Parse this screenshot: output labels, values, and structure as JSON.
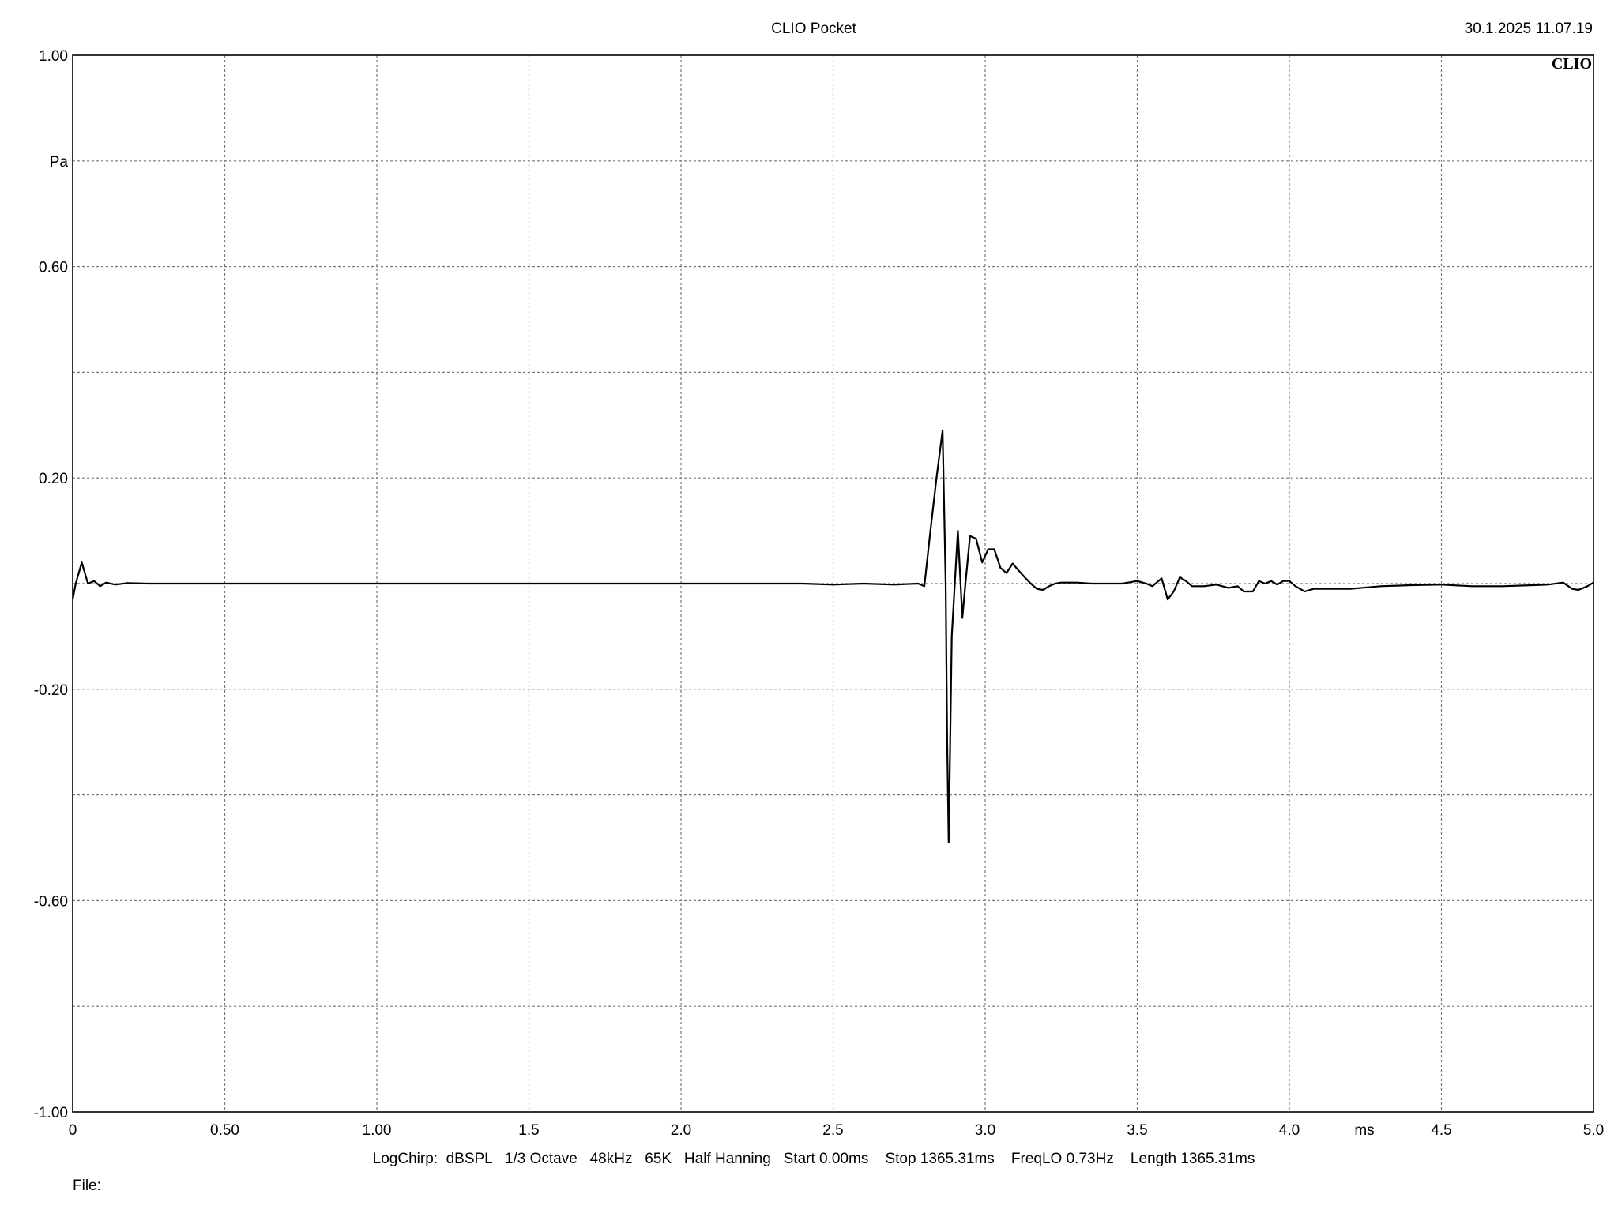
{
  "header": {
    "title": "CLIO Pocket",
    "timestamp": "30.1.2025 11.07.19",
    "logo": "CLIO"
  },
  "footer": {
    "settings": "LogChirp:  dBSPL   1/3 Octave   48kHz   65K   Half Hanning   Start 0.00ms    Stop 1365.31ms    FreqLO 0.73Hz    Length 1365.31ms",
    "file_label": "File:"
  },
  "chart_data": {
    "type": "line",
    "title": "CLIO Pocket",
    "xlabel": "ms",
    "ylabel": "Pa",
    "xlim": [
      0,
      5.0
    ],
    "ylim": [
      -1.0,
      1.0
    ],
    "grid": true,
    "x_ticks": [
      {
        "value": 0,
        "label": "0"
      },
      {
        "value": 0.5,
        "label": "0.50"
      },
      {
        "value": 1.0,
        "label": "1.00"
      },
      {
        "value": 1.5,
        "label": "1.5"
      },
      {
        "value": 2.0,
        "label": "2.0"
      },
      {
        "value": 2.5,
        "label": "2.5"
      },
      {
        "value": 3.0,
        "label": "3.0"
      },
      {
        "value": 3.5,
        "label": "3.5"
      },
      {
        "value": 4.0,
        "label": "4.0"
      },
      {
        "value": 4.5,
        "label": "4.5"
      },
      {
        "value": 5.0,
        "label": "5.0"
      }
    ],
    "y_ticks": [
      {
        "value": 1.0,
        "label": "1.00"
      },
      {
        "value": 0.6,
        "label": "0.60"
      },
      {
        "value": 0.2,
        "label": "0.20"
      },
      {
        "value": -0.2,
        "label": "-0.20"
      },
      {
        "value": -0.6,
        "label": "-0.60"
      },
      {
        "value": -1.0,
        "label": "-1.00"
      }
    ],
    "y_grid": [
      0.8,
      0.4,
      0.0,
      -0.4,
      -0.8
    ],
    "series": [
      {
        "color": "#000000",
        "x": [
          0,
          0.01,
          0.02,
          0.03,
          0.05,
          0.07,
          0.09,
          0.11,
          0.14,
          0.18,
          0.25,
          0.5,
          1.0,
          1.5,
          2.0,
          2.4,
          2.5,
          2.6,
          2.7,
          2.78,
          2.8,
          2.82,
          2.84,
          2.86,
          2.87,
          2.875,
          2.88,
          2.89,
          2.91,
          2.925,
          2.935,
          2.95,
          2.97,
          2.99,
          3.01,
          3.03,
          3.05,
          3.07,
          3.09,
          3.11,
          3.13,
          3.15,
          3.17,
          3.19,
          3.21,
          3.23,
          3.25,
          3.3,
          3.35,
          3.4,
          3.45,
          3.5,
          3.53,
          3.55,
          3.58,
          3.6,
          3.62,
          3.64,
          3.66,
          3.68,
          3.72,
          3.76,
          3.8,
          3.83,
          3.85,
          3.88,
          3.9,
          3.92,
          3.94,
          3.96,
          3.98,
          4.0,
          4.02,
          4.05,
          4.08,
          4.12,
          4.16,
          4.2,
          4.3,
          4.4,
          4.5,
          4.6,
          4.7,
          4.8,
          4.85,
          4.9,
          4.93,
          4.95,
          4.98,
          5.0
        ],
        "values": [
          -0.03,
          0.0,
          0.02,
          0.04,
          0.0,
          0.005,
          -0.005,
          0.002,
          -0.002,
          0.001,
          0.0,
          0.0,
          0.0,
          0.0,
          0.0,
          0.0,
          -0.002,
          0.0,
          -0.002,
          0.0,
          -0.005,
          0.1,
          0.2,
          0.29,
          0.0,
          -0.3,
          -0.49,
          -0.1,
          0.1,
          -0.065,
          0.0,
          0.09,
          0.085,
          0.04,
          0.065,
          0.065,
          0.03,
          0.02,
          0.038,
          0.025,
          0.012,
          0.0,
          -0.01,
          -0.012,
          -0.005,
          0.0,
          0.002,
          0.002,
          0.0,
          0.0,
          0.0,
          0.005,
          0.0,
          -0.005,
          0.01,
          -0.03,
          -0.015,
          0.012,
          0.005,
          -0.005,
          -0.005,
          -0.002,
          -0.008,
          -0.005,
          -0.015,
          -0.015,
          0.005,
          0.0,
          0.005,
          -0.002,
          0.005,
          0.005,
          -0.005,
          -0.015,
          -0.01,
          -0.01,
          -0.01,
          -0.01,
          -0.005,
          -0.003,
          -0.002,
          -0.005,
          -0.005,
          -0.003,
          -0.002,
          0.002,
          -0.01,
          -0.012,
          -0.005,
          0.002
        ]
      }
    ]
  }
}
